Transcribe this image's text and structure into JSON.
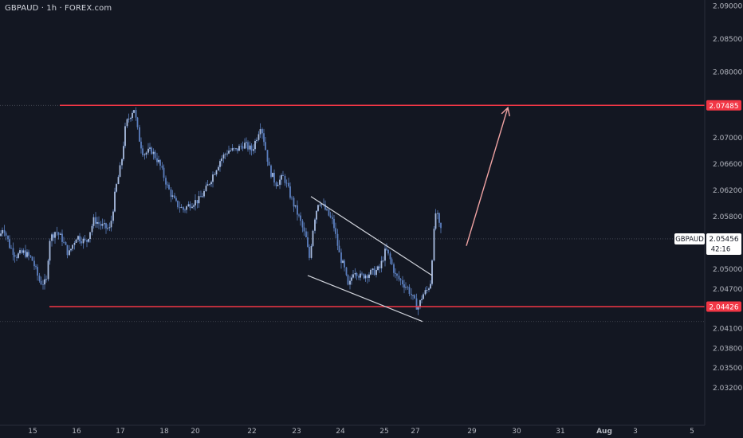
{
  "header": {
    "symbol_title": "GBPAUD · 1h · FOREX.com"
  },
  "colors": {
    "background": "#131722",
    "candle": "#5b7fbf",
    "resistance": "#f23645",
    "channel": "#d1d4dc",
    "arrow": "#f0a3a3",
    "axis_text": "#b2b5be",
    "price_tag_bg": "#f23645"
  },
  "price_axis": {
    "ticks": [
      2.09,
      2.085,
      2.08,
      2.07485,
      2.07,
      2.066,
      2.062,
      2.058,
      2.05456,
      2.05,
      2.047,
      2.04426,
      2.041,
      2.038,
      2.035,
      2.032
    ],
    "tick_labels": [
      "2.09000",
      "2.08500",
      "2.08000",
      "2.07000",
      "2.06600",
      "2.06200",
      "2.05800",
      "2.05000",
      "2.04700",
      "2.04100",
      "2.03800",
      "2.03500",
      "2.03200"
    ],
    "tick_values": [
      2.09,
      2.085,
      2.08,
      2.07,
      2.066,
      2.062,
      2.058,
      2.05,
      2.047,
      2.041,
      2.038,
      2.035,
      2.032
    ]
  },
  "time_axis": {
    "labels": [
      "15",
      "16",
      "17",
      "18",
      "20",
      "22",
      "23",
      "24",
      "25",
      "27",
      "29",
      "30",
      "31",
      "Aug",
      "3",
      "5"
    ]
  },
  "price_tags": {
    "resistance_label": "2.07485",
    "support_label": "2.04426",
    "current_symbol": "GBPAUD",
    "current_price": "2.05456",
    "countdown": "42:16"
  },
  "chart_data": {
    "type": "candlestick",
    "symbol": "GBPAUD",
    "interval": "1h",
    "source": "FOREX.com",
    "ylim": [
      2.0295,
      2.0905
    ],
    "x_labels": [
      "15",
      "16",
      "17",
      "18",
      "20",
      "22",
      "23",
      "24",
      "25",
      "27",
      "29",
      "30",
      "31",
      "Aug",
      "3",
      "5"
    ],
    "price_path": [
      [
        0,
        2.055
      ],
      [
        4,
        2.0565
      ],
      [
        12,
        2.0535
      ],
      [
        20,
        2.052
      ],
      [
        30,
        2.0525
      ],
      [
        40,
        2.0515
      ],
      [
        50,
        2.048
      ],
      [
        58,
        2.0478
      ],
      [
        62,
        2.0545
      ],
      [
        70,
        2.0558
      ],
      [
        78,
        2.0545
      ],
      [
        86,
        2.0522
      ],
      [
        96,
        2.055
      ],
      [
        108,
        2.054
      ],
      [
        118,
        2.0575
      ],
      [
        128,
        2.0565
      ],
      [
        138,
        2.056
      ],
      [
        145,
        2.062
      ],
      [
        152,
        2.066
      ],
      [
        158,
        2.072
      ],
      [
        164,
        2.0735
      ],
      [
        168,
        2.0745
      ],
      [
        174,
        2.07
      ],
      [
        180,
        2.0675
      ],
      [
        190,
        2.068
      ],
      [
        200,
        2.066
      ],
      [
        210,
        2.0625
      ],
      [
        220,
        2.06
      ],
      [
        230,
        2.059
      ],
      [
        240,
        2.06
      ],
      [
        250,
        2.0605
      ],
      [
        258,
        2.062
      ],
      [
        266,
        2.064
      ],
      [
        276,
        2.0665
      ],
      [
        286,
        2.068
      ],
      [
        296,
        2.068
      ],
      [
        306,
        2.069
      ],
      [
        316,
        2.068
      ],
      [
        322,
        2.07
      ],
      [
        327,
        2.072
      ],
      [
        332,
        2.069
      ],
      [
        338,
        2.065
      ],
      [
        346,
        2.063
      ],
      [
        356,
        2.064
      ],
      [
        366,
        2.0605
      ],
      [
        376,
        2.0575
      ],
      [
        384,
        2.0545
      ],
      [
        388,
        2.0515
      ],
      [
        394,
        2.0575
      ],
      [
        400,
        2.0605
      ],
      [
        408,
        2.059
      ],
      [
        418,
        2.057
      ],
      [
        426,
        2.052
      ],
      [
        432,
        2.05
      ],
      [
        437,
        2.047
      ],
      [
        444,
        2.05
      ],
      [
        452,
        2.0488
      ],
      [
        460,
        2.0492
      ],
      [
        468,
        2.0495
      ],
      [
        476,
        2.05
      ],
      [
        484,
        2.053
      ],
      [
        490,
        2.0512
      ],
      [
        496,
        2.049
      ],
      [
        504,
        2.048
      ],
      [
        512,
        2.047
      ],
      [
        518,
        2.0455
      ],
      [
        524,
        2.044
      ],
      [
        530,
        2.046
      ],
      [
        536,
        2.0468
      ],
      [
        540,
        2.048
      ],
      [
        544,
        2.055
      ],
      [
        547,
        2.059
      ],
      [
        551,
        2.0565
      ],
      [
        555,
        2.0556
      ]
    ],
    "levels": [
      {
        "price": 2.07485,
        "label": "2.07485",
        "x_start": 75
      },
      {
        "price": 2.04426,
        "label": "2.04426",
        "x_start": 62
      }
    ],
    "channel": {
      "upper": [
        [
          390,
          2.061
        ],
        [
          542,
          2.049
        ]
      ],
      "lower": [
        [
          386,
          2.049
        ],
        [
          530,
          2.042
        ]
      ]
    },
    "arrow": {
      "from": [
        585,
        2.0535
      ],
      "to": [
        637,
        2.0745
      ]
    },
    "current_price": 2.05456,
    "last_low_marker": 2.042
  }
}
